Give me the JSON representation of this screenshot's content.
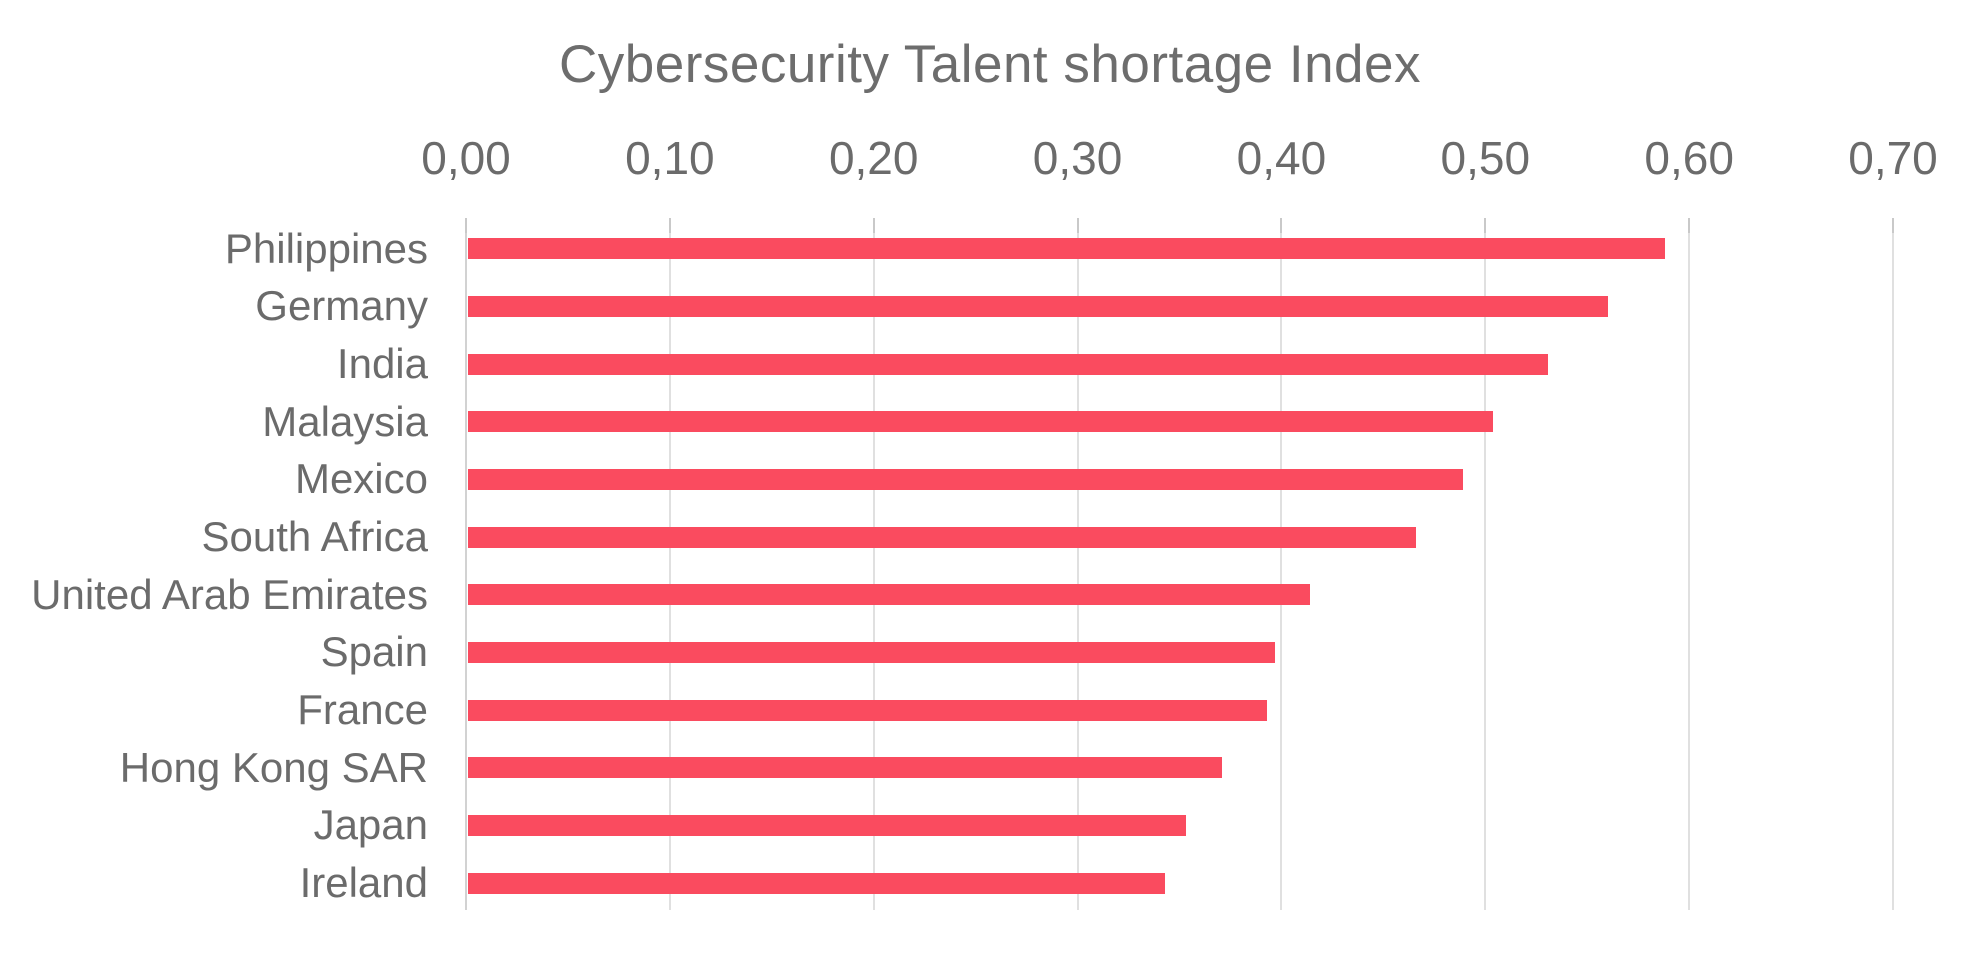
{
  "chart_data": {
    "type": "bar",
    "orientation": "horizontal",
    "title": "Cybersecurity Talent shortage Index",
    "categories": [
      "Philippines",
      "Germany",
      "India",
      "Malaysia",
      "Mexico",
      "South Africa",
      "United Arab Emirates",
      "Spain",
      "France",
      "Hong Kong SAR",
      "Japan",
      "Ireland"
    ],
    "values": [
      0.588,
      0.56,
      0.531,
      0.504,
      0.489,
      0.466,
      0.414,
      0.397,
      0.393,
      0.371,
      0.353,
      0.343
    ],
    "xlabel": "",
    "ylabel": "",
    "x_axis": {
      "min": 0,
      "max": 0.7,
      "tick_step": 0.1,
      "position": "top",
      "decimal_separator": ",",
      "tick_labels": [
        "0,00",
        "0,10",
        "0,20",
        "0,30",
        "0,40",
        "0,50",
        "0,60",
        "0,70"
      ]
    },
    "grid": true,
    "legend": false,
    "colors": {
      "bar": "#fa4b5f",
      "title_text": "#6d6d6d",
      "axis_text": "#6b6b6b",
      "category_text": "#6b6b6b",
      "gridline": "#e0e0e0",
      "axis_line": "#d2d2d2",
      "tick": "#c9c9c9",
      "background": "#ffffff"
    }
  }
}
